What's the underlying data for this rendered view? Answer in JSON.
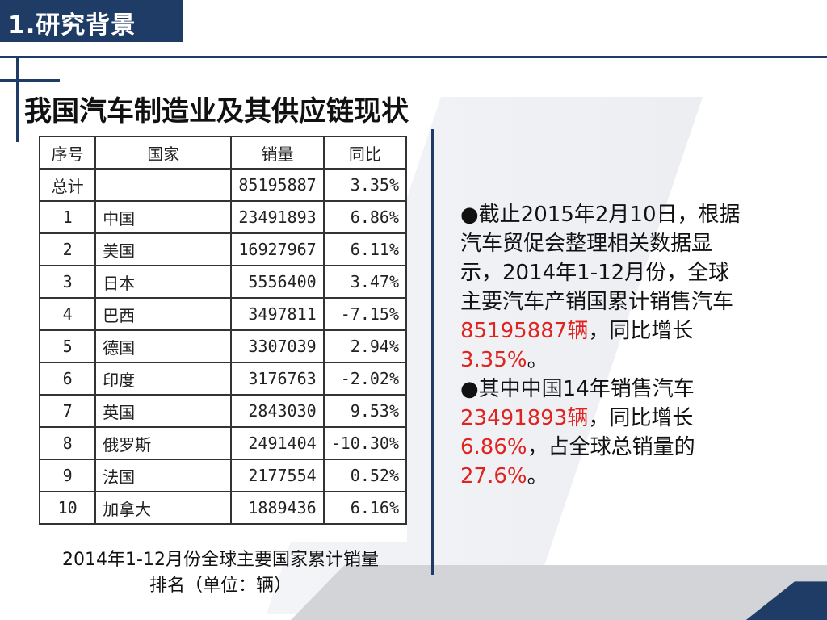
{
  "header": {
    "section_title": "1.研究背景"
  },
  "main_title": "我国汽车制造业及其供应链现状",
  "table": {
    "columns": [
      "序号",
      "国家",
      "销量",
      "同比"
    ],
    "rows": [
      {
        "idx": "总计",
        "country": "",
        "sales": "85195887",
        "yoy": "3.35%"
      },
      {
        "idx": "1",
        "country": "中国",
        "sales": "23491893",
        "yoy": "6.86%"
      },
      {
        "idx": "2",
        "country": "美国",
        "sales": "16927967",
        "yoy": "6.11%"
      },
      {
        "idx": "3",
        "country": "日本",
        "sales": "5556400",
        "yoy": "3.47%"
      },
      {
        "idx": "4",
        "country": "巴西",
        "sales": "3497811",
        "yoy": "-7.15%"
      },
      {
        "idx": "5",
        "country": "德国",
        "sales": "3307039",
        "yoy": "2.94%"
      },
      {
        "idx": "6",
        "country": "印度",
        "sales": "3176763",
        "yoy": "-2.02%"
      },
      {
        "idx": "7",
        "country": "英国",
        "sales": "2843030",
        "yoy": "9.53%"
      },
      {
        "idx": "8",
        "country": "俄罗斯",
        "sales": "2491404",
        "yoy": "-10.30%"
      },
      {
        "idx": "9",
        "country": "法国",
        "sales": "2177554",
        "yoy": "0.52%"
      },
      {
        "idx": "10",
        "country": "加拿大",
        "sales": "1889436",
        "yoy": "6.16%"
      }
    ]
  },
  "caption": {
    "line1": "2014年1-12月份全球主要国家累计销量",
    "line2": "排名（单位：辆）"
  },
  "bullets": {
    "b1_pre": "●截止2015年2月10日，根据汽车贸促会整理相关数据显示，2014年1-12月份，全球主要汽车产销国累计销售汽车",
    "b1_red1": "85195887辆",
    "b1_mid": "，同比增长",
    "b1_red2": "3.35%",
    "b1_end": "。",
    "b2_pre": "●其中中国14年销售汽车",
    "b2_red1": "23491893辆",
    "b2_mid": "，同比增长",
    "b2_red2": "6.86%",
    "b2_mid2": "，占全球总销量的",
    "b2_red3": "27.6%",
    "b2_end": "。"
  },
  "colors": {
    "navy": "#1f3c66",
    "highlight_red": "#e0231e"
  }
}
